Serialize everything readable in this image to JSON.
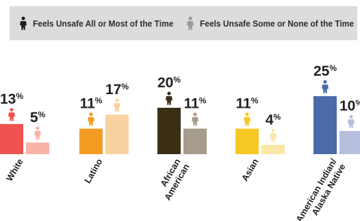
{
  "legend": {
    "item1_label": "Feels Unsafe All or Most of the Time",
    "item2_label": "Feels Unsafe Some or None of the Time",
    "item1_icon": "person-icon",
    "item2_icon": "person-icon",
    "item1_color": "#1f1f1f",
    "item2_color": "#9a9a9a"
  },
  "chart_data": {
    "type": "bar",
    "value_suffix": "%",
    "categories": [
      {
        "label": [
          "White"
        ],
        "colors": [
          "#ef5350",
          "#f7b4a7"
        ]
      },
      {
        "label": [
          "Latino"
        ],
        "colors": [
          "#f39c24",
          "#f8d2a1"
        ]
      },
      {
        "label": [
          "African",
          "American"
        ],
        "colors": [
          "#3a2f15",
          "#a59c8b"
        ]
      },
      {
        "label": [
          "Asian"
        ],
        "colors": [
          "#f7c824",
          "#fbe6a6"
        ]
      },
      {
        "label": [
          "American Indian/",
          "Alaska Native"
        ],
        "colors": [
          "#4b6aa9",
          "#b5bfdd"
        ]
      }
    ],
    "series": [
      {
        "name": "Feels Unsafe All or Most of the Time",
        "values": [
          13,
          11,
          20,
          11,
          25
        ]
      },
      {
        "name": "Feels Unsafe Some or None of the Time",
        "values": [
          5,
          17,
          11,
          4,
          10
        ]
      }
    ],
    "ylim": [
      0,
      25
    ],
    "grid": false,
    "legend_position": "top"
  }
}
